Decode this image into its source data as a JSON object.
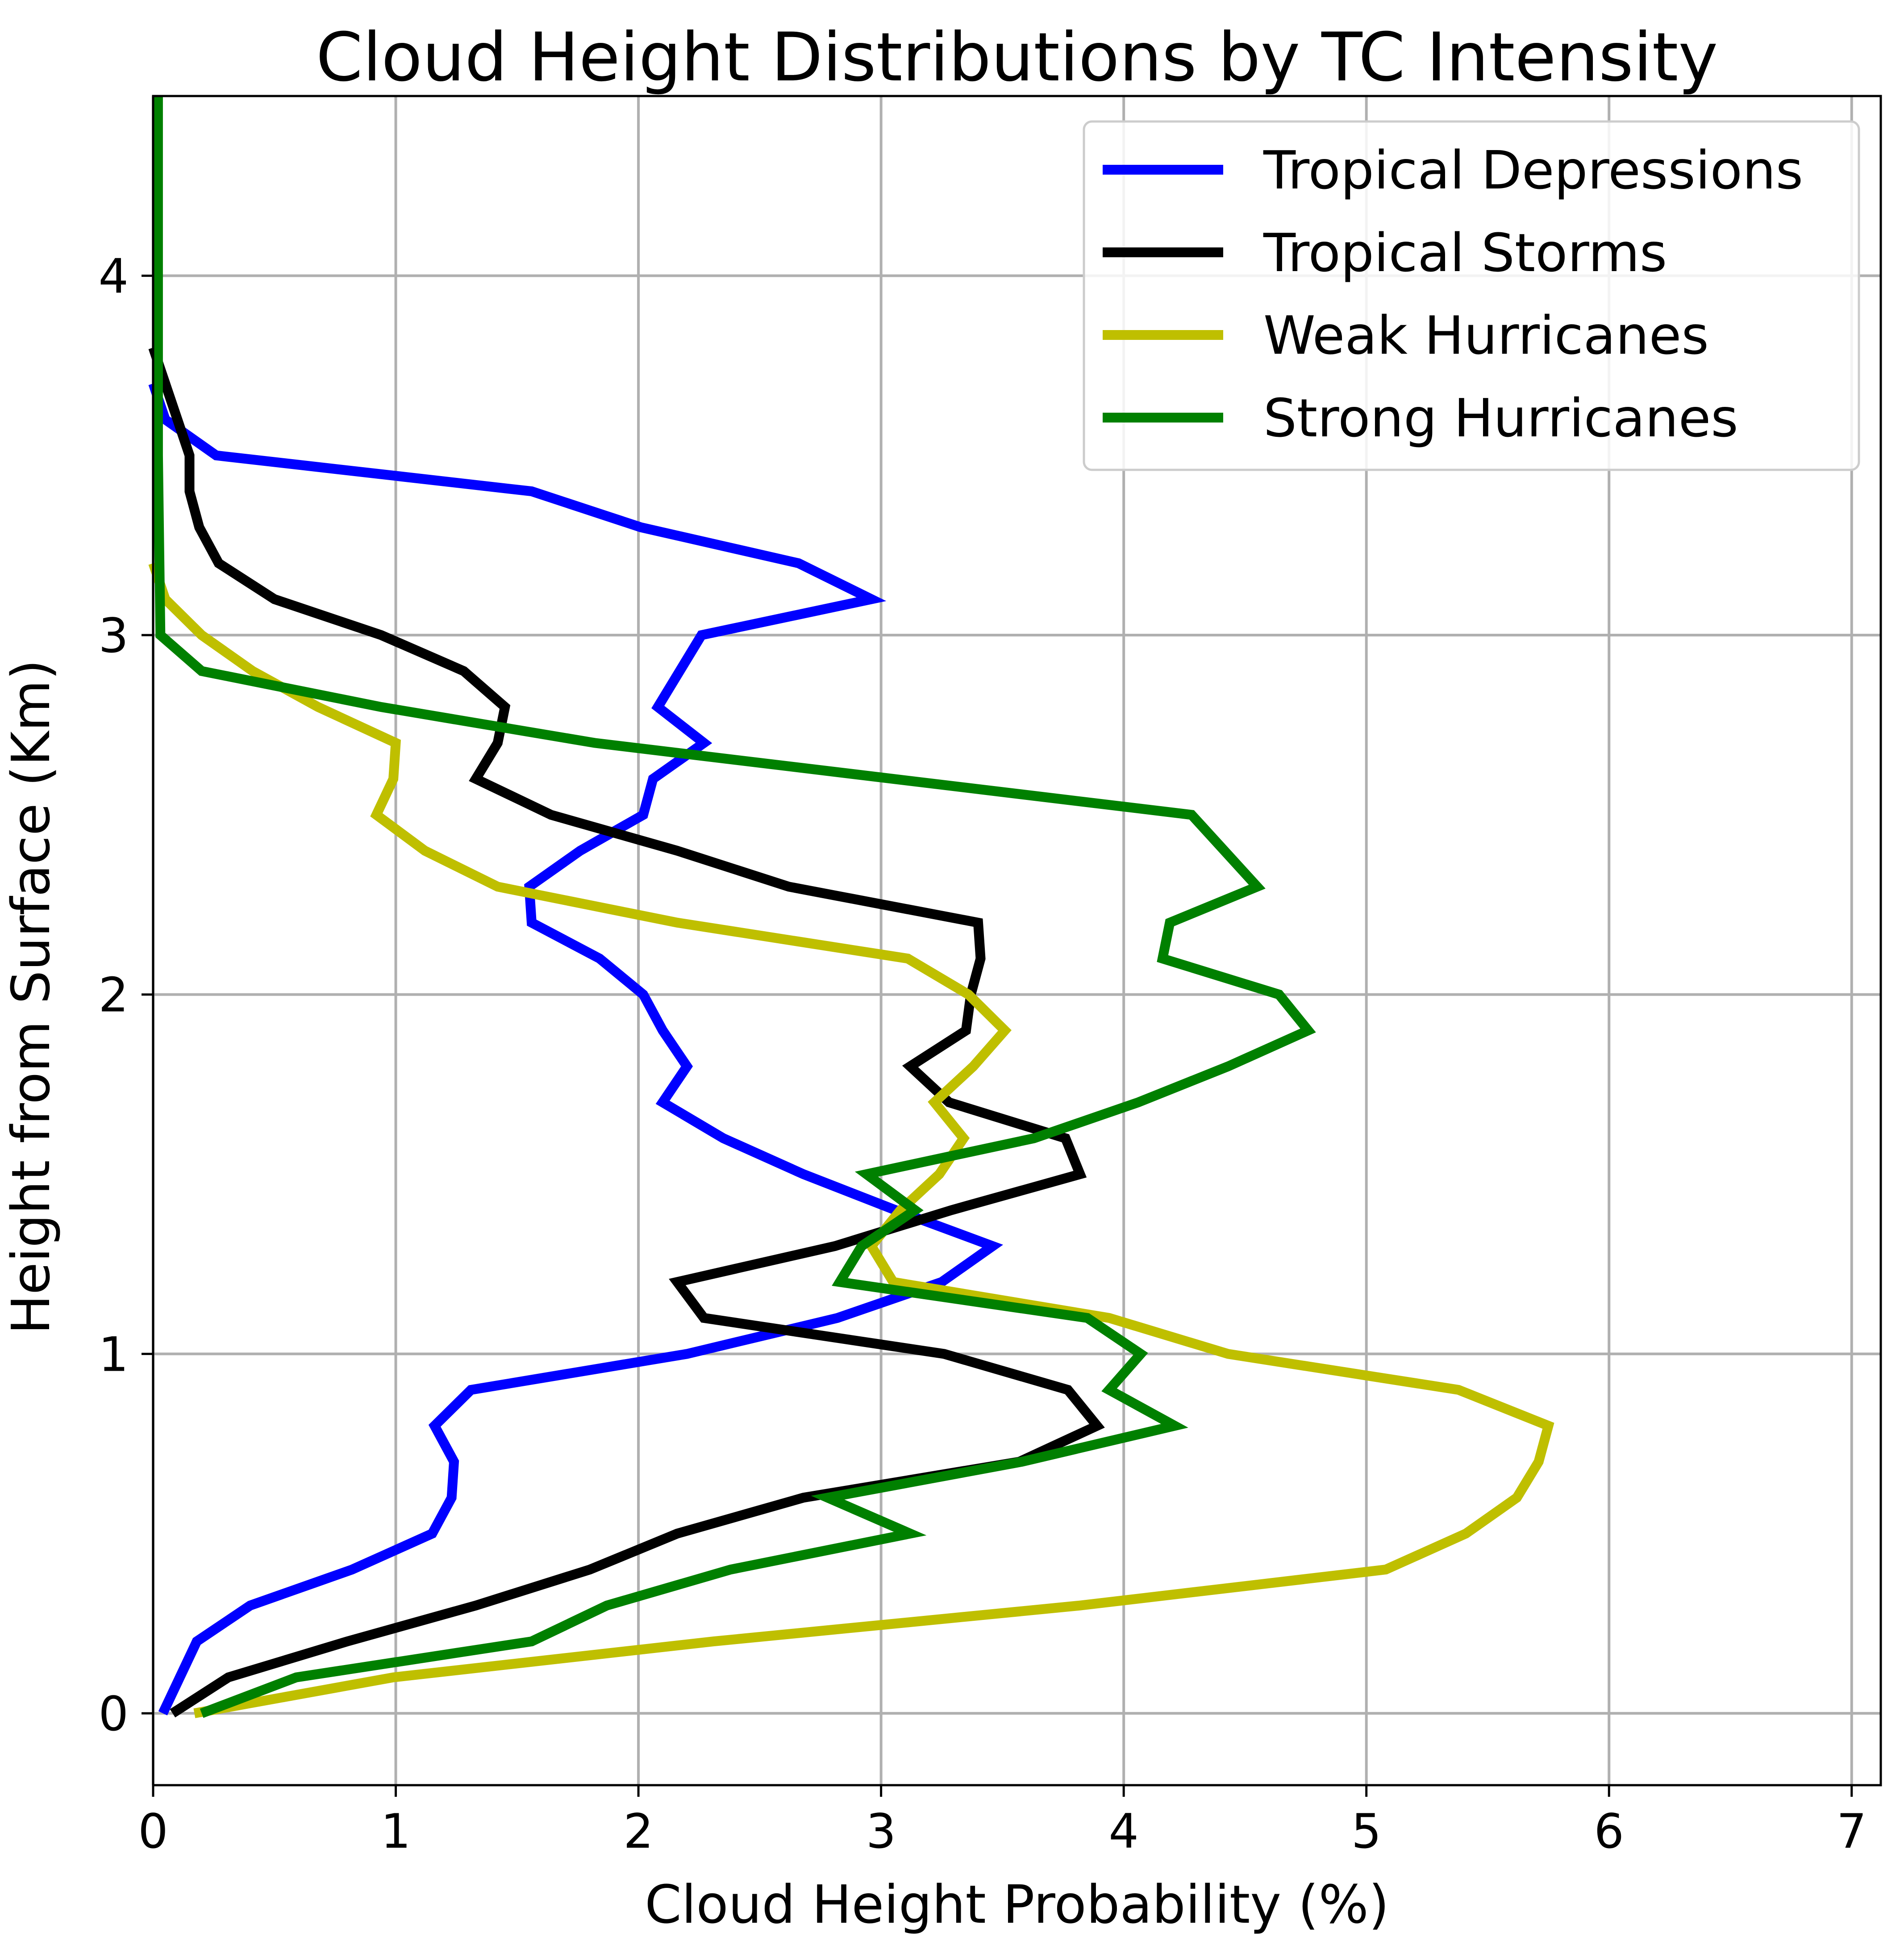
{
  "chart_data": {
    "type": "line",
    "title": "Cloud Height Distributions by TC Intensity",
    "xlabel": "Cloud Height Probability (%)",
    "ylabel": "Height from Surface (Km)",
    "xlim": [
      0,
      7.12
    ],
    "ylim": [
      -0.2,
      4.5
    ],
    "xticks": [
      0,
      1,
      2,
      3,
      4,
      5,
      6,
      7
    ],
    "yticks": [
      0,
      1,
      2,
      3,
      4
    ],
    "grid": true,
    "legend_position": "top-right",
    "series": [
      {
        "name": "Tropical Depressions",
        "color": "#0000ff",
        "points": [
          [
            0.04,
            0.0
          ],
          [
            0.18,
            0.2
          ],
          [
            0.4,
            0.3
          ],
          [
            0.82,
            0.4
          ],
          [
            1.15,
            0.5
          ],
          [
            1.23,
            0.6
          ],
          [
            1.24,
            0.7
          ],
          [
            1.16,
            0.8
          ],
          [
            1.31,
            0.9
          ],
          [
            2.2,
            1.0
          ],
          [
            2.82,
            1.1
          ],
          [
            3.25,
            1.2
          ],
          [
            3.46,
            1.3
          ],
          [
            3.06,
            1.4
          ],
          [
            2.68,
            1.5
          ],
          [
            2.35,
            1.6
          ],
          [
            2.1,
            1.7
          ],
          [
            2.2,
            1.8
          ],
          [
            2.1,
            1.9
          ],
          [
            2.02,
            2.0
          ],
          [
            1.84,
            2.1
          ],
          [
            1.56,
            2.2
          ],
          [
            1.55,
            2.3
          ],
          [
            1.76,
            2.4
          ],
          [
            2.02,
            2.5
          ],
          [
            2.06,
            2.6
          ],
          [
            2.27,
            2.7
          ],
          [
            2.08,
            2.8
          ],
          [
            2.26,
            3.0
          ],
          [
            2.96,
            3.1
          ],
          [
            2.66,
            3.2
          ],
          [
            2.01,
            3.3
          ],
          [
            1.56,
            3.4
          ],
          [
            0.26,
            3.5
          ],
          [
            0.05,
            3.6
          ],
          [
            0.0,
            3.7
          ]
        ]
      },
      {
        "name": "Tropical Storms",
        "color": "#000000",
        "points": [
          [
            0.08,
            0.0
          ],
          [
            0.31,
            0.1
          ],
          [
            0.8,
            0.2
          ],
          [
            1.33,
            0.3
          ],
          [
            1.8,
            0.4
          ],
          [
            2.16,
            0.5
          ],
          [
            2.68,
            0.6
          ],
          [
            3.57,
            0.7
          ],
          [
            3.89,
            0.8
          ],
          [
            3.77,
            0.9
          ],
          [
            3.26,
            1.0
          ],
          [
            2.27,
            1.1
          ],
          [
            2.16,
            1.2
          ],
          [
            2.81,
            1.3
          ],
          [
            3.29,
            1.4
          ],
          [
            3.82,
            1.5
          ],
          [
            3.76,
            1.6
          ],
          [
            3.28,
            1.7
          ],
          [
            3.12,
            1.8
          ],
          [
            3.35,
            1.9
          ],
          [
            3.37,
            2.0
          ],
          [
            3.41,
            2.1
          ],
          [
            3.4,
            2.2
          ],
          [
            2.62,
            2.3
          ],
          [
            2.16,
            2.4
          ],
          [
            1.64,
            2.5
          ],
          [
            1.33,
            2.6
          ],
          [
            1.42,
            2.7
          ],
          [
            1.45,
            2.8
          ],
          [
            1.28,
            2.9
          ],
          [
            0.94,
            3.0
          ],
          [
            0.5,
            3.1
          ],
          [
            0.27,
            3.2
          ],
          [
            0.19,
            3.3
          ],
          [
            0.15,
            3.4
          ],
          [
            0.15,
            3.5
          ],
          [
            0.1,
            3.6
          ],
          [
            0.0,
            3.8
          ]
        ]
      },
      {
        "name": "Weak Hurricanes",
        "color": "#bfbf00",
        "points": [
          [
            0.17,
            0.0
          ],
          [
            0.99,
            0.1
          ],
          [
            2.31,
            0.2
          ],
          [
            3.82,
            0.3
          ],
          [
            5.08,
            0.4
          ],
          [
            5.41,
            0.5
          ],
          [
            5.62,
            0.6
          ],
          [
            5.71,
            0.7
          ],
          [
            5.75,
            0.8
          ],
          [
            5.38,
            0.9
          ],
          [
            4.43,
            1.0
          ],
          [
            3.94,
            1.1
          ],
          [
            3.05,
            1.2
          ],
          [
            2.96,
            1.3
          ],
          [
            3.08,
            1.4
          ],
          [
            3.24,
            1.5
          ],
          [
            3.34,
            1.6
          ],
          [
            3.22,
            1.7
          ],
          [
            3.38,
            1.8
          ],
          [
            3.51,
            1.9
          ],
          [
            3.36,
            2.0
          ],
          [
            3.11,
            2.1
          ],
          [
            2.16,
            2.2
          ],
          [
            1.42,
            2.3
          ],
          [
            1.12,
            2.4
          ],
          [
            0.92,
            2.5
          ],
          [
            0.99,
            2.6
          ],
          [
            1.0,
            2.7
          ],
          [
            0.68,
            2.8
          ],
          [
            0.41,
            2.9
          ],
          [
            0.2,
            3.0
          ],
          [
            0.05,
            3.1
          ],
          [
            0.0,
            3.2
          ]
        ]
      },
      {
        "name": "Strong Hurricanes",
        "color": "#008000",
        "points": [
          [
            0.2,
            0.0
          ],
          [
            0.59,
            0.1
          ],
          [
            1.56,
            0.2
          ],
          [
            1.87,
            0.3
          ],
          [
            2.38,
            0.4
          ],
          [
            3.12,
            0.5
          ],
          [
            2.78,
            0.6
          ],
          [
            3.58,
            0.7
          ],
          [
            4.21,
            0.8
          ],
          [
            3.94,
            0.9
          ],
          [
            4.07,
            1.0
          ],
          [
            3.85,
            1.1
          ],
          [
            2.83,
            1.2
          ],
          [
            2.92,
            1.3
          ],
          [
            3.14,
            1.4
          ],
          [
            2.94,
            1.5
          ],
          [
            3.63,
            1.6
          ],
          [
            4.06,
            1.7
          ],
          [
            4.43,
            1.8
          ],
          [
            4.76,
            1.9
          ],
          [
            4.64,
            2.0
          ],
          [
            4.16,
            2.1
          ],
          [
            4.19,
            2.2
          ],
          [
            4.55,
            2.3
          ],
          [
            4.28,
            2.5
          ],
          [
            1.82,
            2.7
          ],
          [
            0.94,
            2.8
          ],
          [
            0.2,
            2.9
          ],
          [
            0.03,
            3.0
          ],
          [
            0.02,
            3.5
          ],
          [
            0.02,
            4.5
          ]
        ]
      }
    ]
  }
}
